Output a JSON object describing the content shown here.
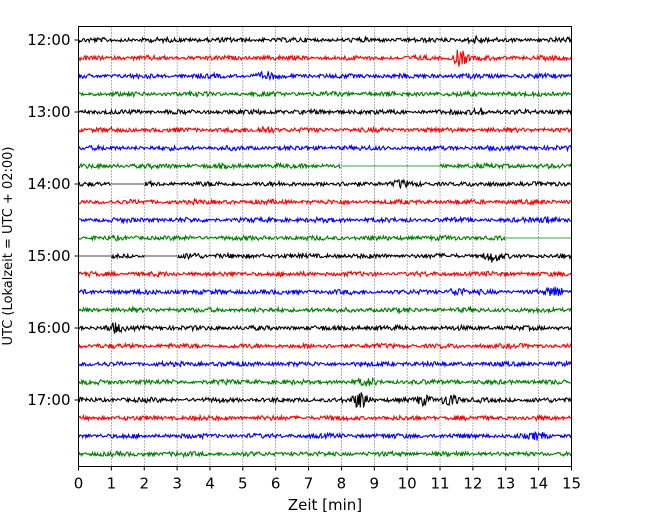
{
  "chart_data": {
    "type": "line",
    "subtype": "helicorder",
    "xlabel": "Zeit  [min]",
    "ylabel": "UTC (Lokalzeit = UTC + 02:00)",
    "xlim": [
      0,
      15
    ],
    "x_ticks": [
      "0",
      "1",
      "2",
      "3",
      "4",
      "5",
      "6",
      "7",
      "8",
      "9",
      "10",
      "11",
      "12",
      "13",
      "14",
      "15"
    ],
    "grid": "vertical-dotted",
    "line_interval_min": 15,
    "trace_colors": [
      "#000000",
      "#ff0000",
      "#0000ff",
      "#008000"
    ],
    "hour_labels": [
      "12:00",
      "13:00",
      "14:00",
      "15:00",
      "16:00",
      "17:00"
    ],
    "traces": [
      {
        "start": "12:00",
        "color": "#000000",
        "gaps": [],
        "bursts": [
          [
            12.1,
            3
          ]
        ]
      },
      {
        "start": "12:15",
        "color": "#ff0000",
        "gaps": [],
        "bursts": [
          [
            11.6,
            8
          ]
        ]
      },
      {
        "start": "12:30",
        "color": "#0000ff",
        "gaps": [],
        "bursts": [
          [
            5.7,
            3
          ]
        ]
      },
      {
        "start": "12:45",
        "color": "#008000",
        "gaps": [],
        "bursts": []
      },
      {
        "start": "13:00",
        "color": "#000000",
        "gaps": [],
        "bursts": [
          [
            12.2,
            3
          ]
        ]
      },
      {
        "start": "13:15",
        "color": "#ff0000",
        "gaps": [],
        "bursts": [
          [
            5.7,
            3
          ]
        ]
      },
      {
        "start": "13:30",
        "color": "#0000ff",
        "gaps": [],
        "bursts": []
      },
      {
        "start": "13:45",
        "color": "#008000",
        "gaps": [
          [
            8.0,
            11.0
          ]
        ],
        "bursts": []
      },
      {
        "start": "14:00",
        "color": "#000000",
        "gaps": [
          [
            1.0,
            2.0
          ]
        ],
        "bursts": [
          [
            9.8,
            3
          ]
        ]
      },
      {
        "start": "14:15",
        "color": "#ff0000",
        "gaps": [],
        "bursts": []
      },
      {
        "start": "14:30",
        "color": "#0000ff",
        "gaps": [],
        "bursts": [
          [
            14.3,
            3
          ]
        ]
      },
      {
        "start": "14:45",
        "color": "#008000",
        "gaps": [
          [
            13.0,
            15.0
          ]
        ],
        "bursts": []
      },
      {
        "start": "15:00",
        "color": "#000000",
        "gaps": [
          [
            0.0,
            1.0
          ],
          [
            2.0,
            3.0
          ]
        ],
        "bursts": [
          [
            12.6,
            5
          ],
          [
            3.5,
            3
          ]
        ]
      },
      {
        "start": "15:15",
        "color": "#ff0000",
        "gaps": [],
        "bursts": []
      },
      {
        "start": "15:30",
        "color": "#0000ff",
        "gaps": [],
        "bursts": [
          [
            11.5,
            4
          ],
          [
            14.5,
            5
          ]
        ]
      },
      {
        "start": "15:45",
        "color": "#008000",
        "gaps": [],
        "bursts": []
      },
      {
        "start": "16:00",
        "color": "#000000",
        "gaps": [],
        "bursts": [
          [
            1.1,
            4
          ]
        ]
      },
      {
        "start": "16:15",
        "color": "#ff0000",
        "gaps": [],
        "bursts": []
      },
      {
        "start": "16:30",
        "color": "#0000ff",
        "gaps": [],
        "bursts": []
      },
      {
        "start": "16:45",
        "color": "#008000",
        "gaps": [],
        "bursts": [
          [
            8.8,
            3
          ]
        ]
      },
      {
        "start": "17:00",
        "color": "#000000",
        "gaps": [],
        "bursts": [
          [
            8.6,
            9
          ],
          [
            11.3,
            7
          ],
          [
            10.5,
            4
          ]
        ]
      },
      {
        "start": "17:15",
        "color": "#ff0000",
        "gaps": [],
        "bursts": []
      },
      {
        "start": "17:30",
        "color": "#0000ff",
        "gaps": [],
        "bursts": [
          [
            14.0,
            3
          ]
        ]
      },
      {
        "start": "17:45",
        "color": "#008000",
        "gaps": [],
        "bursts": []
      }
    ]
  }
}
